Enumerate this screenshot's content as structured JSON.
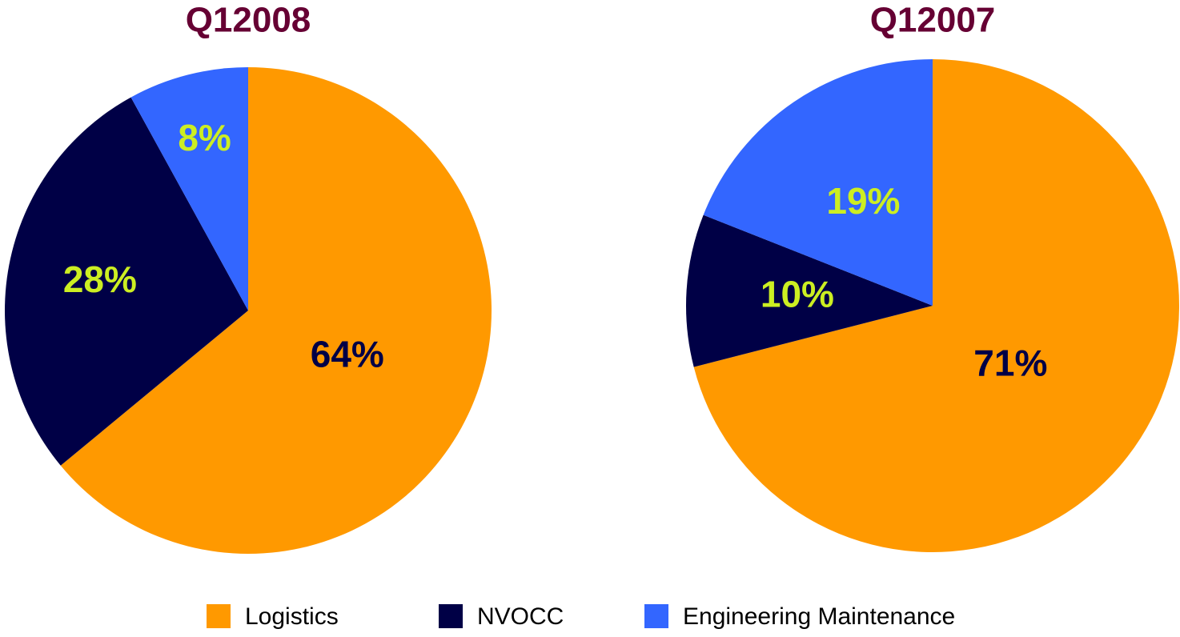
{
  "chart_data": [
    {
      "type": "pie",
      "title": "Q12008",
      "categories": [
        "Logistics",
        "NVOCC",
        "Engineering Maintenance"
      ],
      "values": [
        64,
        28,
        8
      ],
      "value_labels": [
        "64%",
        "28%",
        "8%"
      ],
      "colors": [
        "#ff9900",
        "#000046",
        "#3366ff"
      ]
    },
    {
      "type": "pie",
      "title": "Q12007",
      "categories": [
        "Logistics",
        "NVOCC",
        "Engineering Maintenance"
      ],
      "values": [
        71,
        10,
        19
      ],
      "value_labels": [
        "71%",
        "10%",
        "19%"
      ],
      "colors": [
        "#ff9900",
        "#000046",
        "#3366ff"
      ]
    }
  ]
}
